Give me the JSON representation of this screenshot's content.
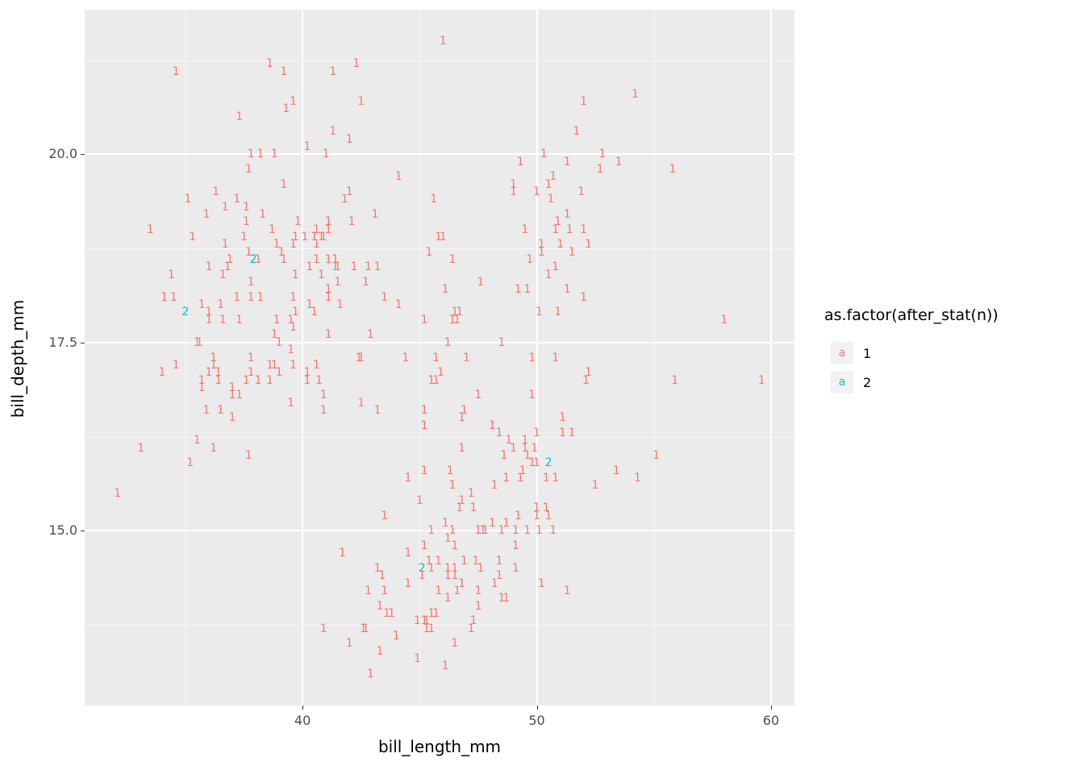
{
  "chart_data": {
    "type": "scatter",
    "title": "",
    "xlabel": "bill_length_mm",
    "ylabel": "bill_depth_mm",
    "xlim": [
      30.7,
      61.0
    ],
    "ylim": [
      12.68,
      21.92
    ],
    "x_ticks": {
      "major": [
        40,
        50,
        60
      ],
      "minor": [
        35,
        45,
        55
      ]
    },
    "y_ticks": {
      "major": [
        15.0,
        17.5,
        20.0
      ],
      "minor": [
        13.75,
        16.25,
        18.75,
        21.25
      ]
    },
    "x_tick_labels": [
      "40",
      "50",
      "60"
    ],
    "y_tick_labels": [
      "15.0",
      "17.5",
      "20.0"
    ],
    "grid": "major+minor",
    "point_glyph": "count-text",
    "legend": {
      "title": "as.factor(after_stat(n))",
      "position": "right",
      "entries": [
        {
          "key": "a",
          "label": "1",
          "color": "#F8766D"
        },
        {
          "key": "a",
          "label": "2",
          "color": "#00BFC4"
        }
      ]
    },
    "points": [
      [
        39.1,
        18.7
      ],
      [
        39.5,
        17.4
      ],
      [
        40.3,
        18.0
      ],
      [
        36.7,
        19.3
      ],
      [
        39.3,
        20.6
      ],
      [
        38.9,
        17.8
      ],
      [
        39.2,
        19.6
      ],
      [
        34.1,
        18.1
      ],
      [
        42.0,
        20.2
      ],
      [
        37.8,
        17.1
      ],
      [
        37.8,
        17.3
      ],
      [
        41.1,
        17.6
      ],
      [
        38.6,
        21.2
      ],
      [
        34.6,
        21.1
      ],
      [
        36.6,
        17.8
      ],
      [
        38.7,
        19.0
      ],
      [
        42.5,
        20.7
      ],
      [
        34.4,
        18.4
      ],
      [
        46.0,
        21.5
      ],
      [
        37.8,
        18.3
      ],
      [
        37.7,
        18.7
      ],
      [
        35.9,
        19.2
      ],
      [
        38.2,
        18.1
      ],
      [
        38.8,
        17.2
      ],
      [
        35.3,
        18.9
      ],
      [
        40.6,
        18.6
      ],
      [
        40.5,
        17.9
      ],
      [
        37.9,
        18.6,
        2
      ],
      [
        40.5,
        18.9
      ],
      [
        39.5,
        16.7
      ],
      [
        37.2,
        18.1
      ],
      [
        39.5,
        17.8
      ],
      [
        40.9,
        18.9
      ],
      [
        36.4,
        17.0
      ],
      [
        39.2,
        21.1
      ],
      [
        38.8,
        20.0
      ],
      [
        42.2,
        18.5
      ],
      [
        37.6,
        19.3
      ],
      [
        39.8,
        19.1
      ],
      [
        36.5,
        18.0
      ],
      [
        40.8,
        18.4
      ],
      [
        36.0,
        18.5
      ],
      [
        44.1,
        19.7
      ],
      [
        37.0,
        16.9
      ],
      [
        39.6,
        18.8
      ],
      [
        41.1,
        19.0
      ],
      [
        37.5,
        18.9
      ],
      [
        36.0,
        17.9
      ],
      [
        42.3,
        21.2
      ],
      [
        39.6,
        17.7
      ],
      [
        40.1,
        18.9
      ],
      [
        35.0,
        17.9,
        2
      ],
      [
        42.0,
        19.5
      ],
      [
        34.5,
        18.1
      ],
      [
        41.4,
        18.6
      ],
      [
        39.0,
        17.5
      ],
      [
        40.6,
        18.8
      ],
      [
        36.5,
        16.6
      ],
      [
        37.6,
        19.1
      ],
      [
        35.7,
        16.9
      ],
      [
        41.3,
        21.1
      ],
      [
        37.6,
        17.0
      ],
      [
        41.1,
        18.2
      ],
      [
        36.4,
        17.1
      ],
      [
        41.6,
        18.0
      ],
      [
        35.5,
        16.2
      ],
      [
        41.1,
        19.1
      ],
      [
        35.9,
        16.6
      ],
      [
        41.8,
        19.4
      ],
      [
        33.5,
        19.0
      ],
      [
        39.7,
        18.4
      ],
      [
        39.6,
        17.2
      ],
      [
        45.8,
        18.9
      ],
      [
        35.5,
        17.5
      ],
      [
        42.8,
        18.5
      ],
      [
        40.9,
        16.8
      ],
      [
        37.2,
        19.4
      ],
      [
        36.2,
        16.1
      ],
      [
        42.1,
        19.1
      ],
      [
        34.6,
        17.2
      ],
      [
        42.9,
        17.6
      ],
      [
        36.7,
        18.8
      ],
      [
        35.1,
        19.4
      ],
      [
        37.3,
        17.8
      ],
      [
        41.3,
        20.3
      ],
      [
        36.3,
        19.5
      ],
      [
        36.9,
        18.6
      ],
      [
        38.3,
        19.2
      ],
      [
        38.9,
        18.8
      ],
      [
        35.7,
        18.0
      ],
      [
        41.1,
        18.1
      ],
      [
        34.0,
        17.1
      ],
      [
        39.6,
        18.1
      ],
      [
        36.2,
        17.3
      ],
      [
        40.8,
        18.9
      ],
      [
        38.1,
        18.6
      ],
      [
        40.3,
        18.5
      ],
      [
        33.1,
        16.1
      ],
      [
        43.2,
        18.5
      ],
      [
        41.0,
        20.0
      ],
      [
        37.7,
        16.0
      ],
      [
        37.8,
        20.0
      ],
      [
        39.7,
        18.9
      ],
      [
        38.6,
        17.2
      ],
      [
        38.2,
        20.0
      ],
      [
        38.1,
        17.0
      ],
      [
        42.7,
        18.3
      ],
      [
        37.3,
        16.8
      ],
      [
        36.6,
        18.4
      ],
      [
        36.0,
        17.8
      ],
      [
        37.8,
        18.1
      ],
      [
        36.0,
        17.1
      ],
      [
        41.5,
        18.5
      ],
      [
        38.6,
        17.0
      ],
      [
        37.3,
        20.5
      ],
      [
        35.7,
        17.0
      ],
      [
        41.1,
        18.6
      ],
      [
        36.2,
        17.2
      ],
      [
        37.7,
        19.8
      ],
      [
        40.2,
        17.0
      ],
      [
        41.4,
        18.5
      ],
      [
        35.2,
        15.9
      ],
      [
        40.6,
        19.0
      ],
      [
        38.8,
        17.6
      ],
      [
        41.5,
        18.3
      ],
      [
        39.0,
        17.1
      ],
      [
        44.1,
        18.0
      ],
      [
        39.6,
        20.7
      ],
      [
        43.1,
        19.2
      ],
      [
        32.1,
        15.5
      ],
      [
        40.7,
        17.0
      ],
      [
        36.8,
        18.5
      ],
      [
        37.0,
        16.8
      ],
      [
        39.2,
        18.6
      ],
      [
        40.2,
        20.1
      ],
      [
        37.0,
        16.5
      ],
      [
        39.7,
        17.9
      ],
      [
        40.2,
        17.1
      ],
      [
        40.6,
        17.2
      ],
      [
        35.6,
        17.5
      ],
      [
        46.5,
        17.9
      ],
      [
        50.0,
        19.5
      ],
      [
        51.3,
        19.2
      ],
      [
        45.4,
        18.7
      ],
      [
        52.7,
        19.8
      ],
      [
        45.2,
        17.8
      ],
      [
        46.1,
        18.2
      ],
      [
        51.3,
        18.2
      ],
      [
        46.0,
        18.9
      ],
      [
        51.3,
        19.9
      ],
      [
        46.6,
        17.8
      ],
      [
        51.7,
        20.3
      ],
      [
        47.0,
        17.3
      ],
      [
        52.0,
        18.1
      ],
      [
        45.9,
        17.1
      ],
      [
        50.5,
        19.6
      ],
      [
        50.3,
        20.0
      ],
      [
        58.0,
        17.8
      ],
      [
        46.4,
        18.6
      ],
      [
        49.2,
        18.2
      ],
      [
        42.4,
        17.3
      ],
      [
        48.5,
        17.5
      ],
      [
        43.2,
        16.6
      ],
      [
        50.6,
        19.4
      ],
      [
        46.7,
        17.9
      ],
      [
        52.0,
        19.0
      ],
      [
        50.5,
        18.4
      ],
      [
        49.5,
        19.0
      ],
      [
        46.4,
        17.8
      ],
      [
        52.8,
        20.0
      ],
      [
        40.9,
        16.6
      ],
      [
        54.2,
        20.8
      ],
      [
        42.5,
        16.7
      ],
      [
        51.0,
        18.8
      ],
      [
        49.7,
        18.6
      ],
      [
        47.5,
        16.8
      ],
      [
        47.6,
        18.3
      ],
      [
        52.0,
        20.7
      ],
      [
        46.9,
        16.6
      ],
      [
        53.5,
        19.9
      ],
      [
        49.0,
        19.5
      ],
      [
        46.2,
        17.5
      ],
      [
        50.9,
        19.1
      ],
      [
        45.5,
        17.0
      ],
      [
        50.9,
        17.9
      ],
      [
        50.8,
        18.5
      ],
      [
        50.1,
        17.9
      ],
      [
        49.0,
        19.6
      ],
      [
        51.5,
        18.7
      ],
      [
        49.8,
        17.3
      ],
      [
        48.1,
        16.4
      ],
      [
        51.4,
        19.0
      ],
      [
        45.7,
        17.3
      ],
      [
        50.7,
        19.7
      ],
      [
        42.5,
        17.3
      ],
      [
        52.2,
        18.8
      ],
      [
        45.2,
        16.6
      ],
      [
        49.3,
        19.9
      ],
      [
        50.2,
        18.8
      ],
      [
        45.6,
        19.4
      ],
      [
        51.9,
        19.5
      ],
      [
        46.8,
        16.5
      ],
      [
        45.7,
        17.0
      ],
      [
        55.8,
        19.8
      ],
      [
        43.5,
        18.1
      ],
      [
        49.6,
        18.2
      ],
      [
        50.8,
        19.0
      ],
      [
        50.2,
        18.7
      ],
      [
        46.1,
        13.2
      ],
      [
        50.0,
        16.3
      ],
      [
        48.7,
        14.1
      ],
      [
        50.0,
        15.2
      ],
      [
        47.6,
        14.5
      ],
      [
        46.5,
        13.5
      ],
      [
        45.4,
        14.6
      ],
      [
        46.7,
        15.3
      ],
      [
        43.3,
        13.4
      ],
      [
        46.8,
        15.4
      ],
      [
        40.9,
        13.7
      ],
      [
        49.0,
        16.1
      ],
      [
        45.5,
        13.7
      ],
      [
        48.4,
        14.6
      ],
      [
        45.8,
        14.6
      ],
      [
        49.3,
        15.7
      ],
      [
        42.0,
        13.5
      ],
      [
        49.2,
        15.2
      ],
      [
        46.2,
        14.5
      ],
      [
        48.7,
        15.1
      ],
      [
        50.2,
        14.3
      ],
      [
        45.1,
        14.5,
        2
      ],
      [
        46.5,
        14.5
      ],
      [
        46.3,
        15.8
      ],
      [
        42.9,
        13.1
      ],
      [
        46.1,
        15.1
      ],
      [
        44.5,
        14.3
      ],
      [
        47.8,
        15.0
      ],
      [
        48.2,
        14.3
      ],
      [
        50.0,
        15.3
      ],
      [
        47.3,
        15.3
      ],
      [
        42.8,
        14.2
      ],
      [
        59.6,
        17.0
      ],
      [
        49.1,
        14.8
      ],
      [
        48.4,
        16.3
      ],
      [
        42.6,
        13.7
      ],
      [
        44.4,
        17.3
      ],
      [
        44.0,
        13.6
      ],
      [
        48.7,
        15.7
      ],
      [
        42.7,
        13.7
      ],
      [
        49.6,
        16.0
      ],
      [
        45.3,
        13.7
      ],
      [
        49.6,
        15.0
      ],
      [
        50.5,
        15.9,
        2
      ],
      [
        43.6,
        13.9
      ],
      [
        45.5,
        13.9
      ],
      [
        44.9,
        13.3
      ],
      [
        45.2,
        15.8
      ],
      [
        46.6,
        14.2
      ],
      [
        48.5,
        14.1
      ],
      [
        45.1,
        14.4
      ],
      [
        50.1,
        15.0
      ],
      [
        46.5,
        14.4
      ],
      [
        45.0,
        15.4
      ],
      [
        43.8,
        13.9
      ],
      [
        45.5,
        15.0
      ],
      [
        43.2,
        14.5
      ],
      [
        50.4,
        15.3
      ],
      [
        45.3,
        13.8
      ],
      [
        46.2,
        14.9
      ],
      [
        45.7,
        13.9
      ],
      [
        54.3,
        15.7
      ],
      [
        45.8,
        14.2
      ],
      [
        49.8,
        16.8
      ],
      [
        46.2,
        14.4
      ],
      [
        49.5,
        16.2
      ],
      [
        43.5,
        14.2
      ],
      [
        50.7,
        15.0
      ],
      [
        47.7,
        15.0
      ],
      [
        46.4,
        15.6
      ],
      [
        48.2,
        15.6
      ],
      [
        46.5,
        14.8
      ],
      [
        46.4,
        15.0
      ],
      [
        48.6,
        16.0
      ],
      [
        47.5,
        14.2
      ],
      [
        51.1,
        16.3
      ],
      [
        45.2,
        13.8
      ],
      [
        45.2,
        16.4
      ],
      [
        49.1,
        14.5
      ],
      [
        52.5,
        15.6
      ],
      [
        47.4,
        14.6
      ],
      [
        50.0,
        15.9
      ],
      [
        44.9,
        13.8
      ],
      [
        50.8,
        17.3
      ],
      [
        43.4,
        14.4
      ],
      [
        51.3,
        14.2
      ],
      [
        47.5,
        14.0
      ],
      [
        52.1,
        17.0
      ],
      [
        47.5,
        15.0
      ],
      [
        52.2,
        17.1
      ],
      [
        45.5,
        14.5
      ],
      [
        49.5,
        16.1
      ],
      [
        44.5,
        14.7
      ],
      [
        50.8,
        15.7
      ],
      [
        49.4,
        15.8
      ],
      [
        46.9,
        14.6
      ],
      [
        48.4,
        14.4
      ],
      [
        51.1,
        16.5
      ],
      [
        48.5,
        15.0
      ],
      [
        55.9,
        17.0
      ],
      [
        47.2,
        15.5
      ],
      [
        49.1,
        15.0
      ],
      [
        47.3,
        13.8
      ],
      [
        46.8,
        16.1
      ],
      [
        41.7,
        14.7
      ],
      [
        53.4,
        15.8
      ],
      [
        43.3,
        14.0
      ],
      [
        48.1,
        15.1
      ],
      [
        50.5,
        15.2
      ],
      [
        49.8,
        15.9
      ],
      [
        43.5,
        15.2
      ],
      [
        51.5,
        16.3
      ],
      [
        46.2,
        14.1
      ],
      [
        55.1,
        16.0
      ],
      [
        44.5,
        15.7
      ],
      [
        48.8,
        16.2
      ],
      [
        47.2,
        13.7
      ],
      [
        46.8,
        14.3
      ],
      [
        50.4,
        15.7
      ],
      [
        45.2,
        14.8
      ],
      [
        49.9,
        16.1
      ]
    ]
  },
  "colors": {
    "panel_background": "#EBEBEB",
    "grid": "#FFFFFF",
    "tick_text": "#4D4D4D",
    "axis_text": "#000000",
    "legend_key_background": "#F2F2F2",
    "count_1": "#F8766D",
    "count_2": "#00BFC4"
  }
}
